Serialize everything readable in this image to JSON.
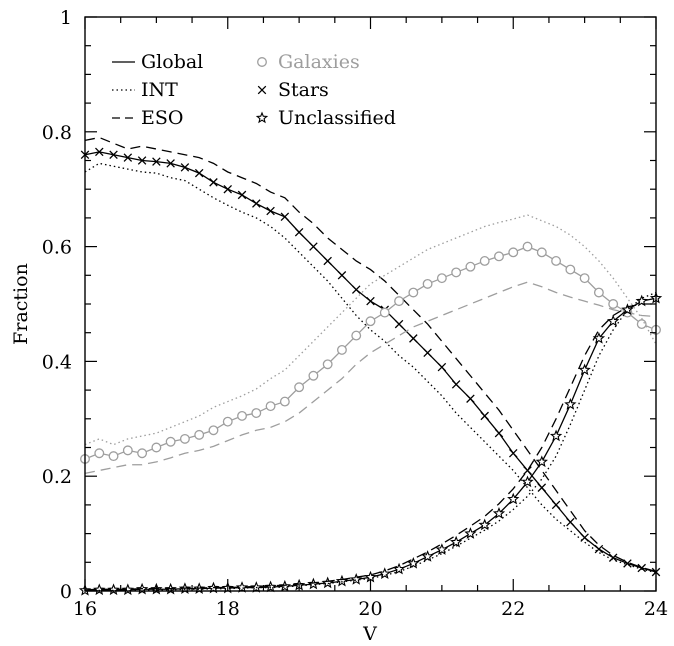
{
  "chart_data": {
    "type": "line",
    "xlabel": "V",
    "ylabel": "Fraction",
    "xlim": [
      16,
      24
    ],
    "ylim": [
      0,
      1
    ],
    "x_ticks": [
      "16",
      "18",
      "20",
      "22",
      "24"
    ],
    "y_ticks": [
      "0",
      "0.2",
      "0.4",
      "0.6",
      "0.8",
      "1"
    ],
    "x_tick_values": [
      16,
      18,
      20,
      22,
      24
    ],
    "y_tick_values": [
      0,
      0.2,
      0.4,
      0.6,
      0.8,
      1
    ],
    "legend": {
      "placement": "top-left",
      "line_styles": [
        {
          "label": "Global",
          "style": "solid"
        },
        {
          "label": "INT",
          "style": "dotted"
        },
        {
          "label": "ESO",
          "style": "dashed"
        }
      ],
      "classes": [
        {
          "label": "Galaxies",
          "marker": "circle",
          "color": "#9e9e9e"
        },
        {
          "label": "Stars",
          "marker": "cross",
          "color": "#000000"
        },
        {
          "label": "Unclassified",
          "marker": "star",
          "color": "#000000"
        }
      ]
    },
    "colors": {
      "stars": "#000000",
      "galaxies": "#9e9e9e",
      "unclassified": "#000000"
    },
    "series": [
      {
        "class": "stars",
        "survey": "Global",
        "style": "solid",
        "marker": "cross",
        "x": [
          16.0,
          16.2,
          16.4,
          16.6,
          16.8,
          17.0,
          17.2,
          17.4,
          17.6,
          17.8,
          18.0,
          18.2,
          18.4,
          18.6,
          18.8,
          19.0,
          19.2,
          19.4,
          19.6,
          19.8,
          20.0,
          20.2,
          20.4,
          20.6,
          20.8,
          21.0,
          21.2,
          21.4,
          21.6,
          21.8,
          22.0,
          22.2,
          22.4,
          22.6,
          22.8,
          23.0,
          23.2,
          23.4,
          23.6,
          23.8,
          24.0
        ],
        "values": [
          0.76,
          0.765,
          0.76,
          0.755,
          0.75,
          0.748,
          0.745,
          0.738,
          0.728,
          0.712,
          0.7,
          0.69,
          0.675,
          0.662,
          0.652,
          0.625,
          0.6,
          0.575,
          0.55,
          0.525,
          0.505,
          0.49,
          0.465,
          0.44,
          0.415,
          0.39,
          0.36,
          0.335,
          0.305,
          0.275,
          0.24,
          0.21,
          0.18,
          0.15,
          0.12,
          0.093,
          0.073,
          0.058,
          0.048,
          0.04,
          0.033
        ]
      },
      {
        "class": "stars",
        "survey": "INT",
        "style": "dotted",
        "marker": "none",
        "x": [
          16.0,
          16.2,
          16.4,
          16.6,
          16.8,
          17.0,
          17.2,
          17.4,
          17.6,
          17.8,
          18.0,
          18.2,
          18.4,
          18.6,
          18.8,
          19.0,
          19.2,
          19.4,
          19.6,
          19.8,
          20.0,
          20.2,
          20.4,
          20.6,
          20.8,
          21.0,
          21.2,
          21.4,
          21.6,
          21.8,
          22.0,
          22.2,
          22.4,
          22.6,
          22.8,
          23.0,
          23.2,
          23.4,
          23.6,
          23.8,
          24.0
        ],
        "values": [
          0.73,
          0.745,
          0.74,
          0.735,
          0.73,
          0.728,
          0.72,
          0.715,
          0.7,
          0.685,
          0.672,
          0.66,
          0.65,
          0.635,
          0.615,
          0.59,
          0.565,
          0.54,
          0.51,
          0.48,
          0.455,
          0.435,
          0.41,
          0.39,
          0.365,
          0.34,
          0.31,
          0.285,
          0.26,
          0.235,
          0.21,
          0.18,
          0.15,
          0.125,
          0.105,
          0.085,
          0.067,
          0.054,
          0.046,
          0.038,
          0.032
        ]
      },
      {
        "class": "stars",
        "survey": "ESO",
        "style": "dashed",
        "marker": "none",
        "x": [
          16.0,
          16.2,
          16.4,
          16.6,
          16.8,
          17.0,
          17.2,
          17.4,
          17.6,
          17.8,
          18.0,
          18.2,
          18.4,
          18.6,
          18.8,
          19.0,
          19.2,
          19.4,
          19.6,
          19.8,
          20.0,
          20.2,
          20.4,
          20.6,
          20.8,
          21.0,
          21.2,
          21.4,
          21.6,
          21.8,
          22.0,
          22.2,
          22.4,
          22.6,
          22.8,
          23.0,
          23.2,
          23.4,
          23.6,
          23.8,
          24.0
        ],
        "values": [
          0.785,
          0.79,
          0.78,
          0.77,
          0.775,
          0.77,
          0.765,
          0.76,
          0.755,
          0.745,
          0.73,
          0.72,
          0.71,
          0.695,
          0.685,
          0.66,
          0.64,
          0.615,
          0.595,
          0.575,
          0.56,
          0.54,
          0.515,
          0.49,
          0.465,
          0.435,
          0.405,
          0.375,
          0.345,
          0.315,
          0.28,
          0.245,
          0.21,
          0.175,
          0.14,
          0.105,
          0.08,
          0.062,
          0.05,
          0.041,
          0.034
        ]
      },
      {
        "class": "galaxies",
        "survey": "Global",
        "style": "solid",
        "marker": "circle",
        "x": [
          16.0,
          16.2,
          16.4,
          16.6,
          16.8,
          17.0,
          17.2,
          17.4,
          17.6,
          17.8,
          18.0,
          18.2,
          18.4,
          18.6,
          18.8,
          19.0,
          19.2,
          19.4,
          19.6,
          19.8,
          20.0,
          20.2,
          20.4,
          20.6,
          20.8,
          21.0,
          21.2,
          21.4,
          21.6,
          21.8,
          22.0,
          22.2,
          22.4,
          22.6,
          22.8,
          23.0,
          23.2,
          23.4,
          23.6,
          23.8,
          24.0
        ],
        "values": [
          0.23,
          0.24,
          0.235,
          0.245,
          0.24,
          0.25,
          0.26,
          0.265,
          0.272,
          0.28,
          0.295,
          0.305,
          0.31,
          0.322,
          0.33,
          0.355,
          0.375,
          0.395,
          0.42,
          0.445,
          0.47,
          0.485,
          0.505,
          0.52,
          0.535,
          0.545,
          0.555,
          0.565,
          0.575,
          0.583,
          0.59,
          0.6,
          0.59,
          0.575,
          0.56,
          0.545,
          0.52,
          0.5,
          0.485,
          0.465,
          0.455
        ]
      },
      {
        "class": "galaxies",
        "survey": "INT",
        "style": "dotted",
        "marker": "none",
        "x": [
          16.0,
          16.2,
          16.4,
          16.6,
          16.8,
          17.0,
          17.2,
          17.4,
          17.6,
          17.8,
          18.0,
          18.2,
          18.4,
          18.6,
          18.8,
          19.0,
          19.2,
          19.4,
          19.6,
          19.8,
          20.0,
          20.2,
          20.4,
          20.6,
          20.8,
          21.0,
          21.2,
          21.4,
          21.6,
          21.8,
          22.0,
          22.2,
          22.4,
          22.6,
          22.8,
          23.0,
          23.2,
          23.4,
          23.6,
          23.8,
          24.0
        ],
        "values": [
          0.255,
          0.265,
          0.255,
          0.265,
          0.27,
          0.275,
          0.285,
          0.295,
          0.305,
          0.32,
          0.33,
          0.34,
          0.352,
          0.37,
          0.385,
          0.41,
          0.435,
          0.46,
          0.485,
          0.51,
          0.535,
          0.55,
          0.565,
          0.58,
          0.595,
          0.605,
          0.615,
          0.625,
          0.635,
          0.642,
          0.648,
          0.655,
          0.645,
          0.635,
          0.62,
          0.6,
          0.575,
          0.545,
          0.51,
          0.475,
          0.43
        ]
      },
      {
        "class": "galaxies",
        "survey": "ESO",
        "style": "dashed",
        "marker": "none",
        "x": [
          16.0,
          16.2,
          16.4,
          16.6,
          16.8,
          17.0,
          17.2,
          17.4,
          17.6,
          17.8,
          18.0,
          18.2,
          18.4,
          18.6,
          18.8,
          19.0,
          19.2,
          19.4,
          19.6,
          19.8,
          20.0,
          20.2,
          20.4,
          20.6,
          20.8,
          21.0,
          21.2,
          21.4,
          21.6,
          21.8,
          22.0,
          22.2,
          22.4,
          22.6,
          22.8,
          23.0,
          23.2,
          23.4,
          23.6,
          23.8,
          24.0
        ],
        "values": [
          0.205,
          0.21,
          0.215,
          0.22,
          0.22,
          0.225,
          0.232,
          0.24,
          0.245,
          0.252,
          0.262,
          0.272,
          0.28,
          0.285,
          0.295,
          0.31,
          0.33,
          0.35,
          0.37,
          0.395,
          0.415,
          0.43,
          0.445,
          0.46,
          0.47,
          0.48,
          0.49,
          0.5,
          0.51,
          0.52,
          0.53,
          0.538,
          0.53,
          0.52,
          0.512,
          0.505,
          0.498,
          0.49,
          0.485,
          0.48,
          0.478
        ]
      },
      {
        "class": "unclassified",
        "survey": "Global",
        "style": "solid",
        "marker": "star",
        "x": [
          16.0,
          16.2,
          16.4,
          16.6,
          16.8,
          17.0,
          17.2,
          17.4,
          17.6,
          17.8,
          18.0,
          18.2,
          18.4,
          18.6,
          18.8,
          19.0,
          19.2,
          19.4,
          19.6,
          19.8,
          20.0,
          20.2,
          20.4,
          20.6,
          20.8,
          21.0,
          21.2,
          21.4,
          21.6,
          21.8,
          22.0,
          22.2,
          22.4,
          22.6,
          22.8,
          23.0,
          23.2,
          23.4,
          23.6,
          23.8,
          24.0
        ],
        "values": [
          0.001,
          0.002,
          0.002,
          0.002,
          0.003,
          0.003,
          0.003,
          0.004,
          0.004,
          0.005,
          0.005,
          0.006,
          0.006,
          0.007,
          0.008,
          0.01,
          0.012,
          0.014,
          0.017,
          0.02,
          0.024,
          0.03,
          0.038,
          0.048,
          0.06,
          0.072,
          0.085,
          0.1,
          0.115,
          0.135,
          0.16,
          0.19,
          0.225,
          0.27,
          0.325,
          0.385,
          0.44,
          0.47,
          0.49,
          0.505,
          0.51
        ]
      },
      {
        "class": "unclassified",
        "survey": "INT",
        "style": "dotted",
        "marker": "none",
        "x": [
          16.0,
          16.2,
          16.4,
          16.6,
          16.8,
          17.0,
          17.2,
          17.4,
          17.6,
          17.8,
          18.0,
          18.2,
          18.4,
          18.6,
          18.8,
          19.0,
          19.2,
          19.4,
          19.6,
          19.8,
          20.0,
          20.2,
          20.4,
          20.6,
          20.8,
          21.0,
          21.2,
          21.4,
          21.6,
          21.8,
          22.0,
          22.2,
          22.4,
          22.6,
          22.8,
          23.0,
          23.2,
          23.4,
          23.6,
          23.8,
          24.0
        ],
        "values": [
          0.0,
          0.001,
          0.001,
          0.001,
          0.002,
          0.002,
          0.002,
          0.003,
          0.003,
          0.004,
          0.004,
          0.005,
          0.006,
          0.006,
          0.007,
          0.009,
          0.011,
          0.013,
          0.016,
          0.019,
          0.022,
          0.027,
          0.034,
          0.043,
          0.054,
          0.065,
          0.078,
          0.092,
          0.106,
          0.122,
          0.142,
          0.165,
          0.195,
          0.235,
          0.29,
          0.35,
          0.41,
          0.455,
          0.49,
          0.51,
          0.52
        ]
      },
      {
        "class": "unclassified",
        "survey": "ESO",
        "style": "dashed",
        "marker": "none",
        "x": [
          16.0,
          16.2,
          16.4,
          16.6,
          16.8,
          17.0,
          17.2,
          17.4,
          17.6,
          17.8,
          18.0,
          18.2,
          18.4,
          18.6,
          18.8,
          19.0,
          19.2,
          19.4,
          19.6,
          19.8,
          20.0,
          20.2,
          20.4,
          20.6,
          20.8,
          21.0,
          21.2,
          21.4,
          21.6,
          21.8,
          22.0,
          22.2,
          22.4,
          22.6,
          22.8,
          23.0,
          23.2,
          23.4,
          23.6,
          23.8,
          24.0
        ],
        "values": [
          0.002,
          0.003,
          0.003,
          0.003,
          0.004,
          0.004,
          0.004,
          0.005,
          0.005,
          0.006,
          0.006,
          0.007,
          0.008,
          0.009,
          0.01,
          0.012,
          0.014,
          0.017,
          0.02,
          0.024,
          0.028,
          0.035,
          0.044,
          0.056,
          0.068,
          0.082,
          0.097,
          0.113,
          0.13,
          0.152,
          0.178,
          0.21,
          0.25,
          0.3,
          0.355,
          0.41,
          0.455,
          0.48,
          0.495,
          0.5,
          0.5
        ]
      }
    ]
  }
}
